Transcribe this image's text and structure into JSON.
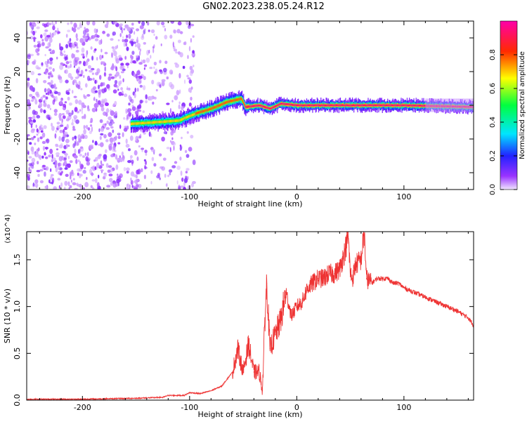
{
  "figure": {
    "title": "GN02.2023.238.05.24.R12"
  },
  "chart_data": [
    {
      "type": "heatmap",
      "title": "GN02.2023.238.05.24.R12",
      "xlabel": "Height of straight line (km)",
      "ylabel": "Frequency (Hz)",
      "xlim": [
        -252,
        165
      ],
      "ylim": [
        -50,
        50
      ],
      "xticks": [
        -200,
        -100,
        0,
        100
      ],
      "xtick_labels": [
        "-200",
        "-100",
        "0",
        "100"
      ],
      "yticks": [
        -40,
        -20,
        0,
        20,
        40
      ],
      "ytick_labels": [
        "-40",
        "-20",
        "0",
        "20",
        "40"
      ],
      "colorbar": {
        "label": "Normalized spectral amplitude",
        "range": [
          0,
          1
        ],
        "ticks": [
          0,
          0.2,
          0.4,
          0.6,
          0.8
        ],
        "tick_labels": [
          "0.0",
          "0.2",
          "0.4",
          "0.6",
          "0.8"
        ],
        "colormap": "rainbow (purple→blue→cyan→green→yellow→red→magenta)"
      },
      "ridge": {
        "description_points": [
          {
            "x": -155,
            "y": -11
          },
          {
            "x": -130,
            "y": -10
          },
          {
            "x": -110,
            "y": -9
          },
          {
            "x": -95,
            "y": -5
          },
          {
            "x": -80,
            "y": -2
          },
          {
            "x": -65,
            "y": 2
          },
          {
            "x": -52,
            "y": 4
          },
          {
            "x": -48,
            "y": -1
          },
          {
            "x": -35,
            "y": 0
          },
          {
            "x": -25,
            "y": -2
          },
          {
            "x": -15,
            "y": 1
          },
          {
            "x": 0,
            "y": 0
          },
          {
            "x": 50,
            "y": 0
          },
          {
            "x": 100,
            "y": 0
          },
          {
            "x": 165,
            "y": -1
          }
        ],
        "peak_amplitude": 1.0
      },
      "noise_region": {
        "x_range": [
          -252,
          -95
        ],
        "y_range": [
          -50,
          50
        ]
      },
      "grid": false
    },
    {
      "type": "line",
      "xlabel": "Height of straight line (km)",
      "ylabel": "SNR (10 * v/v)",
      "y_multiplier": "(x10^4)",
      "xlim": [
        -252,
        165
      ],
      "ylim": [
        0,
        1.8
      ],
      "xticks": [
        -200,
        -100,
        0,
        100
      ],
      "xtick_labels": [
        "-200",
        "-100",
        "0",
        "100"
      ],
      "yticks": [
        0,
        0.5,
        1.0,
        1.5
      ],
      "ytick_labels": [
        "0.0",
        "0.5",
        "1.0",
        "1.5"
      ],
      "series": [
        {
          "color": "#ee3333",
          "x": [
            -252,
            -200,
            -150,
            -125,
            -120,
            -105,
            -100,
            -90,
            -80,
            -70,
            -60,
            -55,
            -50,
            -45,
            -40,
            -35,
            -32,
            -30,
            -28,
            -25,
            -20,
            -15,
            -10,
            -5,
            0,
            5,
            10,
            15,
            20,
            25,
            30,
            35,
            40,
            45,
            48,
            50,
            52,
            55,
            60,
            63,
            65,
            70,
            75,
            80,
            85,
            90,
            95,
            100,
            110,
            120,
            130,
            140,
            150,
            160,
            165
          ],
          "y": [
            0.01,
            0.01,
            0.02,
            0.03,
            0.05,
            0.05,
            0.08,
            0.07,
            0.1,
            0.15,
            0.3,
            0.55,
            0.3,
            0.6,
            0.3,
            0.3,
            0.1,
            0.8,
            1.25,
            0.55,
            0.7,
            0.85,
            1.15,
            0.9,
            1.0,
            1.05,
            1.2,
            1.25,
            1.3,
            1.3,
            1.35,
            1.35,
            1.4,
            1.6,
            1.75,
            1.35,
            1.3,
            1.45,
            1.5,
            1.8,
            1.3,
            1.25,
            1.3,
            1.3,
            1.3,
            1.25,
            1.25,
            1.2,
            1.15,
            1.1,
            1.05,
            1.0,
            0.95,
            0.88,
            0.8
          ]
        }
      ],
      "grid": false
    }
  ]
}
